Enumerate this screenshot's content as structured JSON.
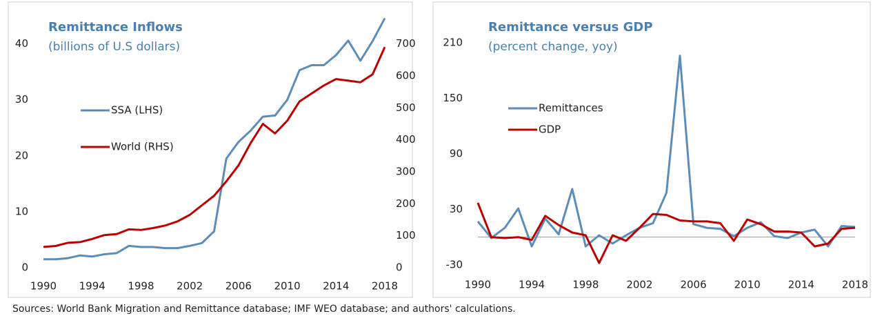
{
  "chart_data": [
    {
      "type": "line",
      "title": "Remittance Inflows",
      "subtitle": "(billions of U.S dollars)",
      "x": [
        1990,
        1991,
        1992,
        1993,
        1994,
        1995,
        1996,
        1997,
        1998,
        1999,
        2000,
        2001,
        2002,
        2003,
        2004,
        2005,
        2006,
        2007,
        2008,
        2009,
        2010,
        2011,
        2012,
        2013,
        2014,
        2015,
        2016,
        2017,
        2018
      ],
      "series": [
        {
          "name": "SSA (LHS)",
          "color": "#5b8db8",
          "values": [
            1.5,
            1.5,
            1.7,
            2.2,
            2.0,
            2.4,
            2.6,
            3.9,
            3.7,
            3.7,
            3.5,
            3.5,
            3.9,
            4.4,
            6.5,
            19.5,
            22.5,
            24.5,
            27,
            27.2,
            30,
            35.3,
            36.2,
            36.2,
            38,
            40.6,
            37,
            40.5,
            44.6
          ]
        },
        {
          "name": "World (RHS)",
          "color": "#c00000",
          "axis": "y2",
          "values": [
            65,
            68,
            78,
            80,
            90,
            102,
            105,
            120,
            118,
            124,
            132,
            145,
            165,
            195,
            225,
            270,
            320,
            390,
            450,
            420,
            460,
            520,
            545,
            570,
            590,
            585,
            580,
            605,
            690
          ]
        }
      ],
      "xlim": [
        1990,
        2018
      ],
      "xticks": [
        1990,
        1994,
        1998,
        2002,
        2006,
        2010,
        2014,
        2018
      ],
      "ylim": [
        0,
        46
      ],
      "yticks": [
        0,
        10,
        20,
        30,
        40
      ],
      "y2lim": [
        0,
        805
      ],
      "y2ticks": [
        0,
        100,
        200,
        300,
        400,
        500,
        600,
        700
      ]
    },
    {
      "type": "line",
      "title": "Remittance versus GDP",
      "subtitle": "(percent change, yoy)",
      "x": [
        1990,
        1991,
        1992,
        1993,
        1994,
        1995,
        1996,
        1997,
        1998,
        1999,
        2000,
        2001,
        2002,
        2003,
        2004,
        2005,
        2006,
        2007,
        2008,
        2009,
        2010,
        2011,
        2012,
        2013,
        2014,
        2015,
        2016,
        2017,
        2018
      ],
      "series": [
        {
          "name": "Remittances",
          "color": "#5b8db8",
          "values": [
            17,
            -1,
            10,
            31,
            -10,
            20,
            3,
            52,
            -10,
            2,
            -7,
            2,
            10,
            15,
            48,
            196,
            14,
            10,
            9,
            1,
            10,
            16,
            1,
            -1,
            5,
            8,
            -10,
            12,
            11
          ]
        },
        {
          "name": "GDP",
          "color": "#c00000",
          "values": [
            37,
            0,
            -1,
            0,
            -3,
            23,
            13,
            5,
            2,
            -28,
            2,
            -4,
            10,
            25,
            24,
            18,
            17,
            17,
            15,
            -4,
            19,
            14,
            6,
            6,
            5,
            -10,
            -7,
            9,
            10
          ]
        }
      ],
      "xlim": [
        1990,
        2018
      ],
      "xticks": [
        1990,
        1994,
        1998,
        2002,
        2006,
        2010,
        2014,
        2018
      ],
      "ylim": [
        -42,
        245
      ],
      "yticks": [
        -30,
        30,
        90,
        150,
        210
      ],
      "zero_line": true
    }
  ],
  "source": "Sources: World Bank Migration and Remittance database; IMF WEO database; and authors' calculations."
}
